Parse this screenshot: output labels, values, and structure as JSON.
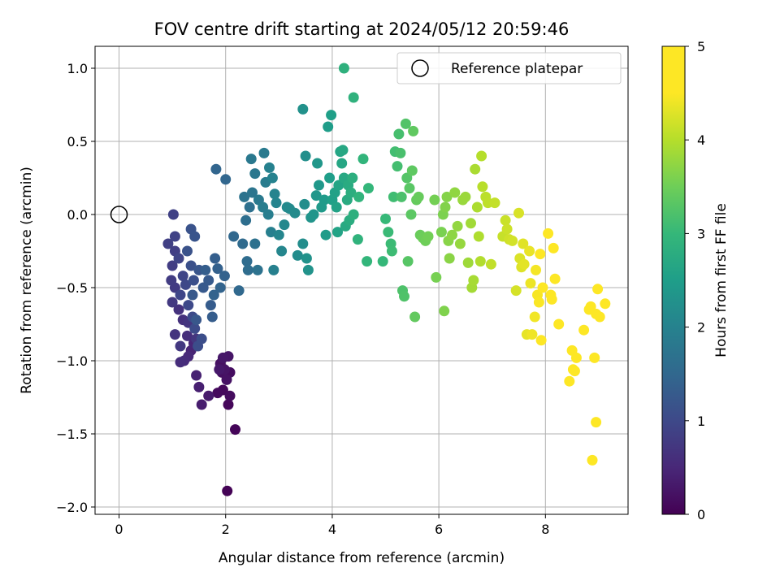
{
  "chart_data": {
    "type": "scatter",
    "title": "FOV centre drift starting at 2024/05/12 20:59:46",
    "xlabel": "Angular distance from reference (arcmin)",
    "ylabel": "Rotation from reference (arcmin)",
    "xlim": [
      -0.45,
      9.55
    ],
    "ylim": [
      -2.05,
      1.15
    ],
    "xticks": [
      0,
      2,
      4,
      6,
      8
    ],
    "yticks": [
      1.0,
      0.5,
      0.0,
      -0.5,
      -1.0,
      -1.5,
      -2.0
    ],
    "xtick_labels": [
      "0",
      "2",
      "4",
      "6",
      "8"
    ],
    "ytick_labels": [
      "1.0",
      "0.5",
      "0.0",
      "−0.5",
      "−1.0",
      "−1.5",
      "−2.0"
    ],
    "grid": true,
    "legend": {
      "position": "top-right",
      "entries": [
        "Reference platepar"
      ]
    },
    "reference_point": {
      "x": 0,
      "y": 0,
      "label": "Reference platepar",
      "marker": "open-circle"
    },
    "colorbar": {
      "label": "Hours from first FF file",
      "range": [
        0,
        5
      ],
      "ticks": [
        0,
        1,
        2,
        3,
        4,
        5
      ],
      "tick_labels": [
        "0",
        "1",
        "2",
        "3",
        "4",
        "5"
      ],
      "colormap": "viridis"
    },
    "points": [
      [
        2.03,
        -1.89,
        0.02
      ],
      [
        2.18,
        -1.47,
        0.05
      ],
      [
        2.05,
        -1.3,
        0.08
      ],
      [
        1.95,
        -1.2,
        0.1
      ],
      [
        1.85,
        -1.22,
        0.12
      ],
      [
        2.08,
        -1.24,
        0.14
      ],
      [
        2.08,
        -1.08,
        0.16
      ],
      [
        1.93,
        -1.08,
        0.18
      ],
      [
        1.9,
        -1.02,
        0.2
      ],
      [
        2.02,
        -1.13,
        0.22
      ],
      [
        1.98,
        -1.06,
        0.24
      ],
      [
        2.05,
        -0.97,
        0.26
      ],
      [
        1.95,
        -0.98,
        0.28
      ],
      [
        1.88,
        -1.06,
        0.3
      ],
      [
        1.68,
        -1.24,
        0.33
      ],
      [
        1.55,
        -1.3,
        0.36
      ],
      [
        1.5,
        -1.18,
        0.39
      ],
      [
        1.45,
        -1.1,
        0.42
      ],
      [
        1.35,
        -0.93,
        0.45
      ],
      [
        1.4,
        -0.88,
        0.48
      ],
      [
        1.3,
        -0.97,
        0.52
      ],
      [
        1.22,
        -1.0,
        0.55
      ],
      [
        1.15,
        -1.01,
        0.58
      ],
      [
        1.28,
        -0.83,
        0.6
      ],
      [
        1.2,
        -0.72,
        0.63
      ],
      [
        1.12,
        -0.65,
        0.65
      ],
      [
        1.05,
        -0.82,
        0.68
      ],
      [
        1.3,
        -0.74,
        0.7
      ],
      [
        1.45,
        -0.85,
        0.72
      ],
      [
        1.15,
        -0.9,
        0.74
      ],
      [
        1.0,
        -0.6,
        0.76
      ],
      [
        1.05,
        -0.5,
        0.78
      ],
      [
        0.98,
        -0.45,
        0.8
      ],
      [
        1.0,
        -0.35,
        0.82
      ],
      [
        1.05,
        -0.25,
        0.84
      ],
      [
        0.92,
        -0.2,
        0.86
      ],
      [
        1.02,
        0.0,
        0.88
      ],
      [
        1.05,
        -0.15,
        0.9
      ],
      [
        1.12,
        -0.3,
        0.92
      ],
      [
        1.2,
        -0.42,
        0.94
      ],
      [
        1.15,
        -0.55,
        0.96
      ],
      [
        1.25,
        -0.48,
        0.98
      ],
      [
        1.3,
        -0.62,
        1.0
      ],
      [
        1.38,
        -0.7,
        1.02
      ],
      [
        1.42,
        -0.78,
        1.04
      ],
      [
        1.48,
        -0.9,
        1.06
      ],
      [
        1.55,
        -0.85,
        1.08
      ],
      [
        1.4,
        -0.45,
        1.1
      ],
      [
        1.35,
        -0.35,
        1.12
      ],
      [
        1.28,
        -0.25,
        1.14
      ],
      [
        1.35,
        -0.1,
        1.16
      ],
      [
        1.42,
        -0.15,
        1.18
      ],
      [
        1.5,
        -0.38,
        1.2
      ],
      [
        1.45,
        -0.72,
        1.22
      ],
      [
        1.38,
        -0.55,
        1.24
      ],
      [
        1.58,
        -0.5,
        1.26
      ],
      [
        1.68,
        -0.45,
        1.28
      ],
      [
        1.72,
        -0.62,
        1.3
      ],
      [
        1.75,
        -0.7,
        1.32
      ],
      [
        1.62,
        -0.38,
        1.34
      ],
      [
        1.8,
        -0.3,
        1.36
      ],
      [
        1.85,
        -0.37,
        1.38
      ],
      [
        1.98,
        -0.42,
        1.4
      ],
      [
        1.78,
        -0.55,
        1.42
      ],
      [
        1.9,
        -0.5,
        1.44
      ],
      [
        1.82,
        0.31,
        1.46
      ],
      [
        2.0,
        0.24,
        1.48
      ],
      [
        2.15,
        -0.15,
        1.5
      ],
      [
        2.25,
        -0.52,
        1.52
      ],
      [
        2.32,
        -0.2,
        1.55
      ],
      [
        2.4,
        -0.32,
        1.58
      ],
      [
        2.42,
        -0.38,
        1.6
      ],
      [
        2.38,
        -0.04,
        1.62
      ],
      [
        2.45,
        0.05,
        1.65
      ],
      [
        2.55,
        -0.2,
        1.68
      ],
      [
        2.6,
        -0.38,
        1.7
      ],
      [
        2.35,
        0.12,
        1.72
      ],
      [
        2.5,
        0.15,
        1.75
      ],
      [
        2.55,
        0.28,
        1.78
      ],
      [
        2.48,
        0.38,
        1.8
      ],
      [
        2.62,
        0.1,
        1.82
      ],
      [
        2.72,
        0.42,
        1.85
      ],
      [
        2.75,
        0.22,
        1.88
      ],
      [
        2.7,
        0.05,
        1.9
      ],
      [
        2.8,
        0.0,
        1.92
      ],
      [
        2.85,
        -0.12,
        1.94
      ],
      [
        2.9,
        -0.38,
        1.96
      ],
      [
        2.82,
        0.32,
        1.98
      ],
      [
        2.88,
        0.25,
        2.0
      ],
      [
        2.92,
        0.14,
        2.02
      ],
      [
        2.95,
        0.08,
        2.04
      ],
      [
        3.0,
        -0.14,
        2.06
      ],
      [
        3.05,
        -0.25,
        2.08
      ],
      [
        3.1,
        -0.07,
        2.1
      ],
      [
        3.15,
        0.05,
        2.12
      ],
      [
        3.2,
        0.04,
        2.14
      ],
      [
        3.3,
        0.01,
        2.16
      ],
      [
        3.35,
        -0.28,
        2.18
      ],
      [
        3.45,
        -0.2,
        2.2
      ],
      [
        3.48,
        0.07,
        2.22
      ],
      [
        3.5,
        0.4,
        2.24
      ],
      [
        3.45,
        0.72,
        2.26
      ],
      [
        3.52,
        -0.3,
        2.28
      ],
      [
        3.55,
        -0.38,
        2.3
      ],
      [
        3.6,
        -0.02,
        2.32
      ],
      [
        3.65,
        0.0,
        2.34
      ],
      [
        3.7,
        0.13,
        2.36
      ],
      [
        3.72,
        0.35,
        2.38
      ],
      [
        3.75,
        0.2,
        2.4
      ],
      [
        3.8,
        0.05,
        2.42
      ],
      [
        3.85,
        0.1,
        2.44
      ],
      [
        3.88,
        -0.14,
        2.46
      ],
      [
        3.92,
        0.6,
        2.48
      ],
      [
        3.95,
        0.25,
        2.5
      ],
      [
        3.98,
        0.68,
        2.52
      ],
      [
        4.0,
        0.1,
        2.54
      ],
      [
        4.05,
        0.15,
        2.56
      ],
      [
        4.08,
        0.05,
        2.58
      ],
      [
        4.1,
        -0.12,
        2.6
      ],
      [
        4.12,
        0.2,
        2.62
      ],
      [
        4.15,
        0.43,
        2.64
      ],
      [
        4.18,
        0.35,
        2.66
      ],
      [
        4.2,
        0.44,
        2.68
      ],
      [
        4.22,
        0.25,
        2.7
      ],
      [
        4.25,
        -0.08,
        2.72
      ],
      [
        4.28,
        0.1,
        2.74
      ],
      [
        4.3,
        0.2,
        2.76
      ],
      [
        4.32,
        -0.04,
        2.78
      ],
      [
        4.35,
        0.15,
        2.8
      ],
      [
        4.38,
        0.25,
        2.82
      ],
      [
        4.4,
        0.0,
        2.84
      ],
      [
        4.22,
        1.0,
        2.86
      ],
      [
        4.4,
        0.8,
        2.88
      ],
      [
        4.48,
        -0.17,
        2.9
      ],
      [
        4.5,
        0.12,
        2.92
      ],
      [
        4.58,
        0.38,
        2.94
      ],
      [
        4.65,
        -0.32,
        2.96
      ],
      [
        4.68,
        0.18,
        2.98
      ],
      [
        4.95,
        -0.32,
        3.0
      ],
      [
        5.0,
        -0.03,
        3.02
      ],
      [
        5.05,
        -0.12,
        3.04
      ],
      [
        5.1,
        -0.2,
        3.06
      ],
      [
        5.12,
        -0.25,
        3.08
      ],
      [
        5.15,
        0.12,
        3.1
      ],
      [
        5.18,
        0.43,
        3.12
      ],
      [
        5.22,
        0.33,
        3.14
      ],
      [
        5.25,
        0.55,
        3.16
      ],
      [
        5.28,
        0.42,
        3.18
      ],
      [
        5.3,
        0.12,
        3.2
      ],
      [
        5.32,
        -0.52,
        3.22
      ],
      [
        5.35,
        -0.56,
        3.24
      ],
      [
        5.38,
        0.62,
        3.26
      ],
      [
        5.4,
        0.25,
        3.28
      ],
      [
        5.42,
        -0.32,
        3.3
      ],
      [
        5.45,
        0.18,
        3.32
      ],
      [
        5.48,
        0.0,
        3.34
      ],
      [
        5.5,
        0.3,
        3.36
      ],
      [
        5.52,
        0.57,
        3.38
      ],
      [
        5.55,
        -0.7,
        3.4
      ],
      [
        5.58,
        0.1,
        3.42
      ],
      [
        5.62,
        0.12,
        3.44
      ],
      [
        5.65,
        -0.14,
        3.46
      ],
      [
        5.7,
        -0.16,
        3.48
      ],
      [
        5.75,
        -0.18,
        3.5
      ],
      [
        5.8,
        -0.15,
        3.52
      ],
      [
        5.92,
        0.1,
        3.54
      ],
      [
        5.95,
        -0.43,
        3.56
      ],
      [
        6.05,
        -0.12,
        3.58
      ],
      [
        6.08,
        0.0,
        3.6
      ],
      [
        6.1,
        -0.66,
        3.62
      ],
      [
        6.12,
        0.05,
        3.64
      ],
      [
        6.15,
        0.12,
        3.66
      ],
      [
        6.18,
        -0.18,
        3.68
      ],
      [
        6.2,
        -0.3,
        3.7
      ],
      [
        6.25,
        -0.14,
        3.72
      ],
      [
        6.3,
        0.15,
        3.74
      ],
      [
        6.35,
        -0.08,
        3.76
      ],
      [
        6.4,
        -0.2,
        3.78
      ],
      [
        6.45,
        0.1,
        3.8
      ],
      [
        6.5,
        0.12,
        3.82
      ],
      [
        6.55,
        -0.33,
        3.84
      ],
      [
        6.6,
        -0.06,
        3.86
      ],
      [
        6.62,
        -0.5,
        3.88
      ],
      [
        6.65,
        -0.45,
        3.9
      ],
      [
        6.68,
        0.31,
        3.92
      ],
      [
        6.72,
        0.05,
        3.94
      ],
      [
        6.75,
        -0.15,
        3.96
      ],
      [
        6.78,
        -0.32,
        3.98
      ],
      [
        6.8,
        0.4,
        4.0
      ],
      [
        6.82,
        0.19,
        4.02
      ],
      [
        6.88,
        0.12,
        4.04
      ],
      [
        6.92,
        0.08,
        4.06
      ],
      [
        6.98,
        -0.34,
        4.08
      ],
      [
        7.05,
        0.08,
        4.1
      ],
      [
        7.2,
        -0.15,
        4.12
      ],
      [
        7.25,
        -0.04,
        4.14
      ],
      [
        7.28,
        -0.1,
        4.16
      ],
      [
        7.32,
        -0.17,
        4.18
      ],
      [
        7.38,
        -0.18,
        4.2
      ],
      [
        7.45,
        -0.52,
        4.22
      ],
      [
        7.5,
        0.01,
        4.24
      ],
      [
        7.52,
        -0.3,
        4.26
      ],
      [
        7.55,
        -0.36,
        4.28
      ],
      [
        7.58,
        -0.2,
        4.3
      ],
      [
        7.6,
        -0.34,
        4.32
      ],
      [
        7.65,
        -0.82,
        4.34
      ],
      [
        7.7,
        -0.25,
        4.36
      ],
      [
        7.72,
        -0.47,
        4.38
      ],
      [
        7.75,
        -0.82,
        4.4
      ],
      [
        7.8,
        -0.7,
        4.42
      ],
      [
        7.82,
        -0.38,
        4.44
      ],
      [
        7.85,
        -0.55,
        4.46
      ],
      [
        7.88,
        -0.6,
        4.48
      ],
      [
        7.9,
        -0.27,
        4.5
      ],
      [
        7.92,
        -0.86,
        4.52
      ],
      [
        7.95,
        -0.5,
        4.54
      ],
      [
        8.05,
        -0.13,
        4.56
      ],
      [
        8.1,
        -0.55,
        4.58
      ],
      [
        8.12,
        -0.58,
        4.6
      ],
      [
        8.15,
        -0.23,
        4.62
      ],
      [
        8.18,
        -0.44,
        4.64
      ],
      [
        8.25,
        -0.75,
        4.66
      ],
      [
        8.45,
        -1.14,
        4.7
      ],
      [
        8.5,
        -0.93,
        4.72
      ],
      [
        8.52,
        -1.06,
        4.74
      ],
      [
        8.55,
        -1.07,
        4.76
      ],
      [
        8.58,
        -0.98,
        4.78
      ],
      [
        8.72,
        -0.79,
        4.8
      ],
      [
        8.82,
        -0.65,
        4.82
      ],
      [
        8.85,
        -0.63,
        4.84
      ],
      [
        8.88,
        -1.68,
        4.86
      ],
      [
        8.92,
        -0.98,
        4.88
      ],
      [
        8.95,
        -0.68,
        4.9
      ],
      [
        8.95,
        -1.42,
        4.92
      ],
      [
        8.98,
        -0.51,
        4.94
      ],
      [
        9.02,
        -0.7,
        4.96
      ],
      [
        9.12,
        -0.61,
        4.98
      ]
    ]
  }
}
